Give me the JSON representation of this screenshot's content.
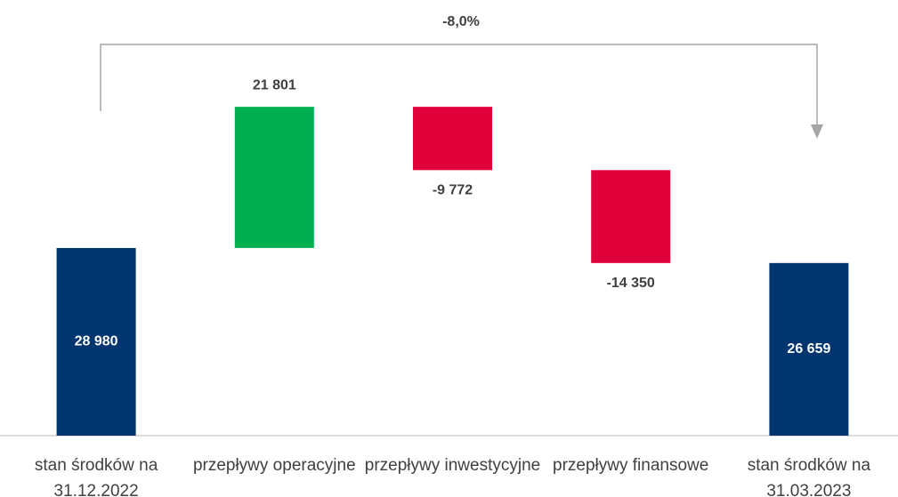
{
  "chart_data": {
    "type": "waterfall",
    "annotation": "-8,0%",
    "categories": [
      "stan środków na 31.12.2022",
      "przepływy operacyjne",
      "przepływy inwestycyjne",
      "przepływy finansowe",
      "stan środków na 31.03.2023"
    ],
    "values": [
      28980,
      21801,
      -9772,
      -14350,
      26659
    ],
    "value_labels": [
      "28 980",
      "21 801",
      "-9 772",
      "-14 350",
      "26 659"
    ],
    "measure": [
      "absolute",
      "relative",
      "relative",
      "relative",
      "absolute"
    ],
    "colors": {
      "total": "#00356f",
      "increase": "#00b050",
      "decrease": "#e0003a"
    },
    "ylim": [
      0,
      60000
    ]
  }
}
